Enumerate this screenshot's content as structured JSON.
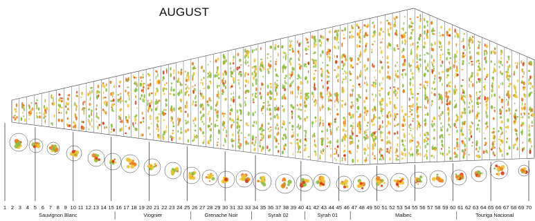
{
  "title": "AUGUST",
  "row_numbers": [
    "1",
    "2",
    "3",
    "4",
    "5",
    "6",
    "7",
    "8",
    "9",
    "10",
    "11",
    "12",
    "13",
    "14",
    "15",
    "16",
    "17",
    "18",
    "19",
    "20",
    "21",
    "22",
    "23",
    "24",
    "25",
    "26",
    "27",
    "28",
    "29",
    "30",
    "31",
    "32",
    "33",
    "34",
    "35",
    "36",
    "37",
    "38",
    "39",
    "40",
    "41",
    "42",
    "43",
    "44",
    "45",
    "46",
    "47",
    "48",
    "49",
    "50",
    "51",
    "52",
    "53",
    "54",
    "55",
    "56",
    "57",
    "58",
    "59",
    "60",
    "61",
    "62",
    "63",
    "64",
    "65",
    "66",
    "67",
    "68",
    "69",
    "70"
  ],
  "varieties": [
    {
      "name": "Sauvignon Blanc",
      "rows_from": 1,
      "rows_to": 15
    },
    {
      "name": "Viognier",
      "rows_from": 16,
      "rows_to": 25
    },
    {
      "name": "Grenache  Noir",
      "rows_from": 26,
      "rows_to": 33
    },
    {
      "name": "Syrah  02",
      "rows_from": 34,
      "rows_to": 40
    },
    {
      "name": "Syrah  01",
      "rows_from": 41,
      "rows_to": 46
    },
    {
      "name": "Malbec",
      "rows_from": 47,
      "rows_to": 60
    },
    {
      "name": "Touriga  Nacional",
      "rows_from": 61,
      "rows_to": 70
    }
  ],
  "colors": {
    "canopy_green": "#8cbf3f",
    "canopy_yellow": "#f2c12e",
    "canopy_orange": "#ee7d1e",
    "canopy_red": "#d93a1c",
    "outline": "#333333"
  }
}
